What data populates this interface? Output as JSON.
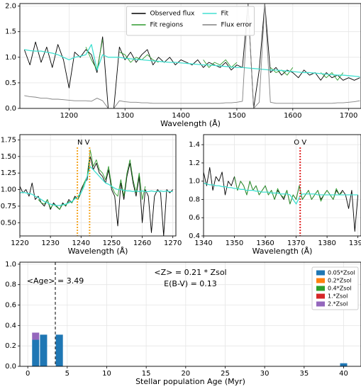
{
  "chart_data": [
    {
      "type": "line",
      "xlabel": "Wavelength (Å)",
      "xlim": [
        1112,
        1722
      ],
      "ylim": [
        0,
        2.05
      ],
      "xticks": [
        1200,
        1300,
        1400,
        1500,
        1600,
        1700
      ],
      "yticks": [
        {
          "value": 0,
          "label": "0.0"
        },
        0.5,
        {
          "value": 1,
          "label": "1.0"
        },
        1.5,
        {
          "value": 2,
          "label": "2.0"
        }
      ],
      "grid": true,
      "legend": "upper center",
      "x": [
        1120,
        1130,
        1140,
        1150,
        1160,
        1170,
        1180,
        1190,
        1200,
        1210,
        1220,
        1230,
        1240,
        1250,
        1260,
        1270,
        1280,
        1290,
        1300,
        1310,
        1320,
        1330,
        1340,
        1350,
        1360,
        1370,
        1380,
        1390,
        1400,
        1410,
        1420,
        1430,
        1440,
        1450,
        1460,
        1470,
        1480,
        1490,
        1500,
        1510,
        1520,
        1530,
        1540,
        1550,
        1560,
        1570,
        1580,
        1590,
        1600,
        1610,
        1620,
        1630,
        1640,
        1650,
        1660,
        1670,
        1680,
        1690,
        1700,
        1710,
        1720
      ],
      "series": [
        {
          "name": "Observed flux",
          "color": "#000000",
          "values": [
            1.15,
            0.85,
            1.3,
            0.9,
            1.2,
            0.8,
            1.25,
            0.95,
            0.4,
            1.1,
            1.0,
            1.15,
            1.05,
            0.7,
            1.4,
            0.0,
            0.0,
            1.2,
            0.95,
            1.1,
            0.9,
            1.05,
            1.15,
            0.85,
            1.0,
            0.9,
            1.0,
            0.85,
            0.95,
            0.9,
            0.85,
            0.95,
            0.8,
            0.9,
            0.85,
            0.8,
            0.9,
            0.75,
            0.85,
            0.8,
            2.05,
            0.0,
            0.75,
            2.05,
            0.7,
            0.8,
            0.65,
            0.75,
            0.7,
            0.6,
            0.75,
            0.65,
            0.7,
            0.55,
            0.7,
            0.6,
            0.65,
            0.55,
            0.6,
            0.55,
            0.6
          ]
        },
        {
          "name": "Fit regions",
          "color": "#2e9a2e",
          "values": [
            null,
            null,
            null,
            null,
            null,
            null,
            null,
            null,
            null,
            null,
            null,
            1.2,
            0.95,
            0.75,
            1.35,
            null,
            null,
            1.1,
            1.05,
            0.9,
            1.0,
            0.95,
            1.05,
            0.95,
            0.9,
            null,
            null,
            null,
            null,
            null,
            null,
            null,
            0.95,
            0.8,
            0.9,
            0.85,
            0.95,
            0.8,
            0.9,
            null,
            null,
            null,
            null,
            null,
            0.8,
            0.7,
            0.75,
            0.65,
            0.8,
            null,
            null,
            null,
            null,
            0.7,
            0.6,
            0.7,
            0.55,
            0.7,
            null,
            null,
            null
          ]
        },
        {
          "name": "Fit",
          "color": "#40e0d0",
          "values": [
            1.15,
            1.13,
            1.12,
            1.12,
            1.1,
            1.08,
            1.05,
            1.0,
            0.95,
            1.0,
            1.02,
            1.05,
            1.25,
            0.75,
            1.05,
            1.0,
            1.0,
            1.0,
            0.98,
            0.97,
            0.96,
            0.95,
            0.94,
            0.93,
            0.92,
            0.91,
            0.9,
            0.9,
            0.89,
            0.88,
            0.87,
            0.86,
            0.85,
            0.85,
            0.84,
            0.83,
            0.82,
            0.81,
            0.8,
            0.8,
            0.79,
            0.78,
            0.77,
            0.76,
            0.75,
            0.75,
            0.74,
            0.73,
            0.72,
            0.71,
            0.7,
            0.7,
            0.69,
            0.68,
            0.67,
            0.66,
            0.65,
            0.65,
            0.64,
            0.63,
            0.62
          ]
        },
        {
          "name": "Flux error",
          "color": "#808080",
          "values": [
            0.25,
            0.23,
            0.22,
            0.2,
            0.2,
            0.18,
            0.18,
            0.17,
            0.16,
            0.15,
            0.15,
            0.15,
            0.14,
            0.2,
            0.15,
            0.0,
            0.0,
            0.15,
            0.13,
            0.12,
            0.12,
            0.11,
            0.11,
            0.1,
            0.1,
            0.1,
            0.1,
            0.1,
            0.1,
            0.1,
            0.1,
            0.1,
            0.1,
            0.1,
            0.1,
            0.1,
            0.11,
            0.11,
            0.12,
            0.14,
            2.05,
            0.0,
            0.12,
            2.05,
            0.12,
            0.1,
            0.1,
            0.1,
            0.1,
            0.1,
            0.1,
            0.1,
            0.1,
            0.1,
            0.1,
            0.1,
            0.11,
            0.11,
            0.12,
            0.13,
            0.15
          ]
        }
      ]
    },
    {
      "type": "line",
      "xlabel": "Wavelength (Å)",
      "xlim": [
        1220,
        1271
      ],
      "ylim": [
        0.3,
        1.83
      ],
      "xticks": [
        1220,
        1230,
        1240,
        1250,
        1260,
        1270
      ],
      "yticks": [
        {
          "value": 0.5,
          "label": "0.50"
        },
        0.75,
        {
          "value": 1,
          "label": "1.00"
        },
        1.25,
        {
          "value": 1.5,
          "label": "1.50"
        },
        1.75
      ],
      "grid": true,
      "lines": [
        {
          "label": "N V",
          "wavelengths": [
            1238.8,
            1242.8
          ],
          "color": "#f5a623"
        }
      ],
      "x": [
        1220,
        1221,
        1222,
        1223,
        1224,
        1225,
        1226,
        1227,
        1228,
        1229,
        1230,
        1231,
        1232,
        1233,
        1234,
        1235,
        1236,
        1237,
        1238,
        1239,
        1240,
        1241,
        1242,
        1243,
        1244,
        1245,
        1246,
        1247,
        1248,
        1249,
        1250,
        1251,
        1252,
        1253,
        1254,
        1255,
        1256,
        1257,
        1258,
        1259,
        1260,
        1261,
        1262,
        1263,
        1264,
        1265,
        1266,
        1267,
        1268,
        1269,
        1270
      ],
      "series": [
        {
          "color": "#000000",
          "values": [
            1.05,
            0.95,
            1.0,
            0.9,
            1.1,
            0.85,
            0.9,
            0.8,
            0.75,
            0.85,
            0.7,
            0.8,
            0.75,
            0.7,
            0.8,
            0.75,
            0.85,
            0.8,
            0.9,
            0.85,
            1.0,
            1.1,
            1.15,
            1.5,
            1.3,
            1.4,
            1.25,
            1.2,
            1.1,
            1.3,
            1.0,
            0.9,
            0.45,
            1.1,
            0.85,
            1.2,
            1.4,
            1.1,
            0.9,
            1.2,
            0.5,
            1.0,
            0.9,
            0.35,
            0.9,
            1.0,
            0.95,
            0.3,
            1.0,
            0.95,
            1.0
          ]
        },
        {
          "color": "#2e9a2e",
          "values": [
            null,
            null,
            null,
            null,
            null,
            null,
            0.85,
            0.8,
            0.78,
            0.85,
            0.72,
            0.78,
            0.74,
            0.7,
            0.78,
            0.76,
            0.82,
            0.8,
            0.88,
            0.85,
            0.95,
            1.1,
            1.2,
            1.6,
            1.35,
            1.45,
            1.3,
            1.25,
            1.15,
            1.35,
            1.05,
            0.95,
            0.9,
            1.15,
            0.9,
            1.25,
            1.45,
            1.15,
            0.95,
            1.25,
            0.85,
            1.05,
            null,
            null,
            null,
            null,
            null,
            null,
            null,
            null,
            null
          ]
        },
        {
          "color": "#40e0d0",
          "values": [
            0.95,
            0.96,
            0.95,
            0.94,
            0.93,
            0.9,
            0.88,
            0.85,
            0.82,
            0.8,
            0.78,
            0.77,
            0.76,
            0.76,
            0.77,
            0.78,
            0.8,
            0.82,
            0.86,
            0.9,
            0.95,
            1.05,
            1.2,
            1.35,
            1.3,
            1.25,
            1.2,
            1.15,
            1.1,
            1.08,
            1.05,
            1.02,
            1.0,
            1.0,
            0.99,
            0.98,
            0.98,
            0.97,
            0.98,
            0.97,
            0.98,
            0.97,
            0.97,
            0.98,
            0.97,
            0.97,
            0.98,
            0.97,
            0.98,
            0.97,
            0.97
          ]
        }
      ]
    },
    {
      "type": "line",
      "xlabel": "Wavelength (Å)",
      "xlim": [
        1340,
        1391
      ],
      "ylim": [
        0.4,
        1.51
      ],
      "xticks": [
        1340,
        1350,
        1360,
        1370,
        1380,
        1390
      ],
      "yticks": [
        0.4,
        0.6,
        0.8,
        {
          "value": 1,
          "label": "1.0"
        },
        1.2,
        1.4
      ],
      "grid": true,
      "lines": [
        {
          "label": "O V",
          "wavelengths": [
            1371.3
          ],
          "color": "#e02020"
        }
      ],
      "x": [
        1340,
        1341,
        1342,
        1343,
        1344,
        1345,
        1346,
        1347,
        1348,
        1349,
        1350,
        1351,
        1352,
        1353,
        1354,
        1355,
        1356,
        1357,
        1358,
        1359,
        1360,
        1361,
        1362,
        1363,
        1364,
        1365,
        1366,
        1367,
        1368,
        1369,
        1370,
        1371,
        1372,
        1373,
        1374,
        1375,
        1376,
        1377,
        1378,
        1379,
        1380,
        1381,
        1382,
        1383,
        1384,
        1385,
        1386,
        1387,
        1388,
        1389,
        1390
      ],
      "series": [
        {
          "color": "#000000",
          "values": [
            1.1,
            0.95,
            1.15,
            0.9,
            1.05,
            1.0,
            1.1,
            0.85,
            1.0,
            0.95,
            1.05,
            0.9,
            1.0,
            0.95,
            0.85,
            1.0,
            0.9,
            0.95,
            0.85,
            0.9,
            0.95,
            0.85,
            0.9,
            0.8,
            0.9,
            0.85,
            0.8,
            0.9,
            0.75,
            0.85,
            0.8,
            0.95,
            0.8,
            0.85,
            0.9,
            0.8,
            0.85,
            0.9,
            0.8,
            0.85,
            0.9,
            0.85,
            0.8,
            0.9,
            0.85,
            0.9,
            0.85,
            0.7,
            0.9,
            0.45,
            0.85
          ]
        },
        {
          "color": "#2e9a2e",
          "values": [
            null,
            null,
            null,
            null,
            null,
            null,
            null,
            null,
            null,
            null,
            1.05,
            0.9,
            1.0,
            0.95,
            0.85,
            1.0,
            0.9,
            0.95,
            0.85,
            0.9,
            0.95,
            0.85,
            0.9,
            0.8,
            0.92,
            0.85,
            0.82,
            0.9,
            0.75,
            0.85,
            0.8,
            0.95,
            0.8,
            0.85,
            0.9,
            0.8,
            0.85,
            0.9,
            0.78,
            0.85,
            0.9,
            0.85,
            0.8,
            0.92,
            0.85,
            0.88,
            null,
            null,
            null,
            null,
            null
          ]
        },
        {
          "color": "#40e0d0",
          "values": [
            0.98,
            0.97,
            0.96,
            0.96,
            0.95,
            0.95,
            0.94,
            0.94,
            0.93,
            0.93,
            0.92,
            0.92,
            0.91,
            0.91,
            0.9,
            0.9,
            0.9,
            0.89,
            0.89,
            0.88,
            0.88,
            0.88,
            0.87,
            0.87,
            0.87,
            0.86,
            0.86,
            0.86,
            0.85,
            0.8,
            0.75,
            0.82,
            0.86,
            0.86,
            0.86,
            0.86,
            0.86,
            0.85,
            0.85,
            0.85,
            0.85,
            0.85,
            0.85,
            0.85,
            0.85,
            0.85,
            0.85,
            0.85,
            0.85,
            0.85,
            0.85
          ]
        }
      ]
    },
    {
      "type": "bar",
      "xlabel": "Stellar population Age (Myr)",
      "xlim": [
        -1,
        42.2
      ],
      "ylim": [
        0,
        1.02
      ],
      "xticks": [
        0,
        5,
        10,
        15,
        20,
        25,
        30,
        35,
        40
      ],
      "yticks": [
        {
          "value": 0,
          "label": "0.0"
        },
        0.2,
        0.4,
        0.6,
        0.8,
        {
          "value": 1,
          "label": "1.0"
        }
      ],
      "grid": true,
      "legend": "upper right",
      "age_line": {
        "value": 3.49,
        "label": "<Age> = 3.49"
      },
      "annotations": [
        "<Z> = 0.21 * Zsol",
        "E(B-V) = 0.13"
      ],
      "x": [
        1,
        2,
        4,
        40
      ],
      "series": [
        {
          "name": "0.05*Zsol",
          "color": "#1f77b4",
          "values": [
            0.26,
            0.31,
            0.31,
            0.03
          ]
        },
        {
          "name": "0.2*Zsol",
          "color": "#ff7f0e",
          "values": [
            0,
            0,
            0,
            0
          ]
        },
        {
          "name": "0.4*Zsol",
          "color": "#2ca02c",
          "values": [
            0,
            0,
            0,
            0
          ]
        },
        {
          "name": "1.*Zsol",
          "color": "#d62728",
          "values": [
            0,
            0,
            0,
            0
          ]
        },
        {
          "name": "2.*Zsol",
          "color": "#9467bd",
          "values": [
            0.07,
            0,
            0,
            0
          ]
        }
      ]
    }
  ]
}
